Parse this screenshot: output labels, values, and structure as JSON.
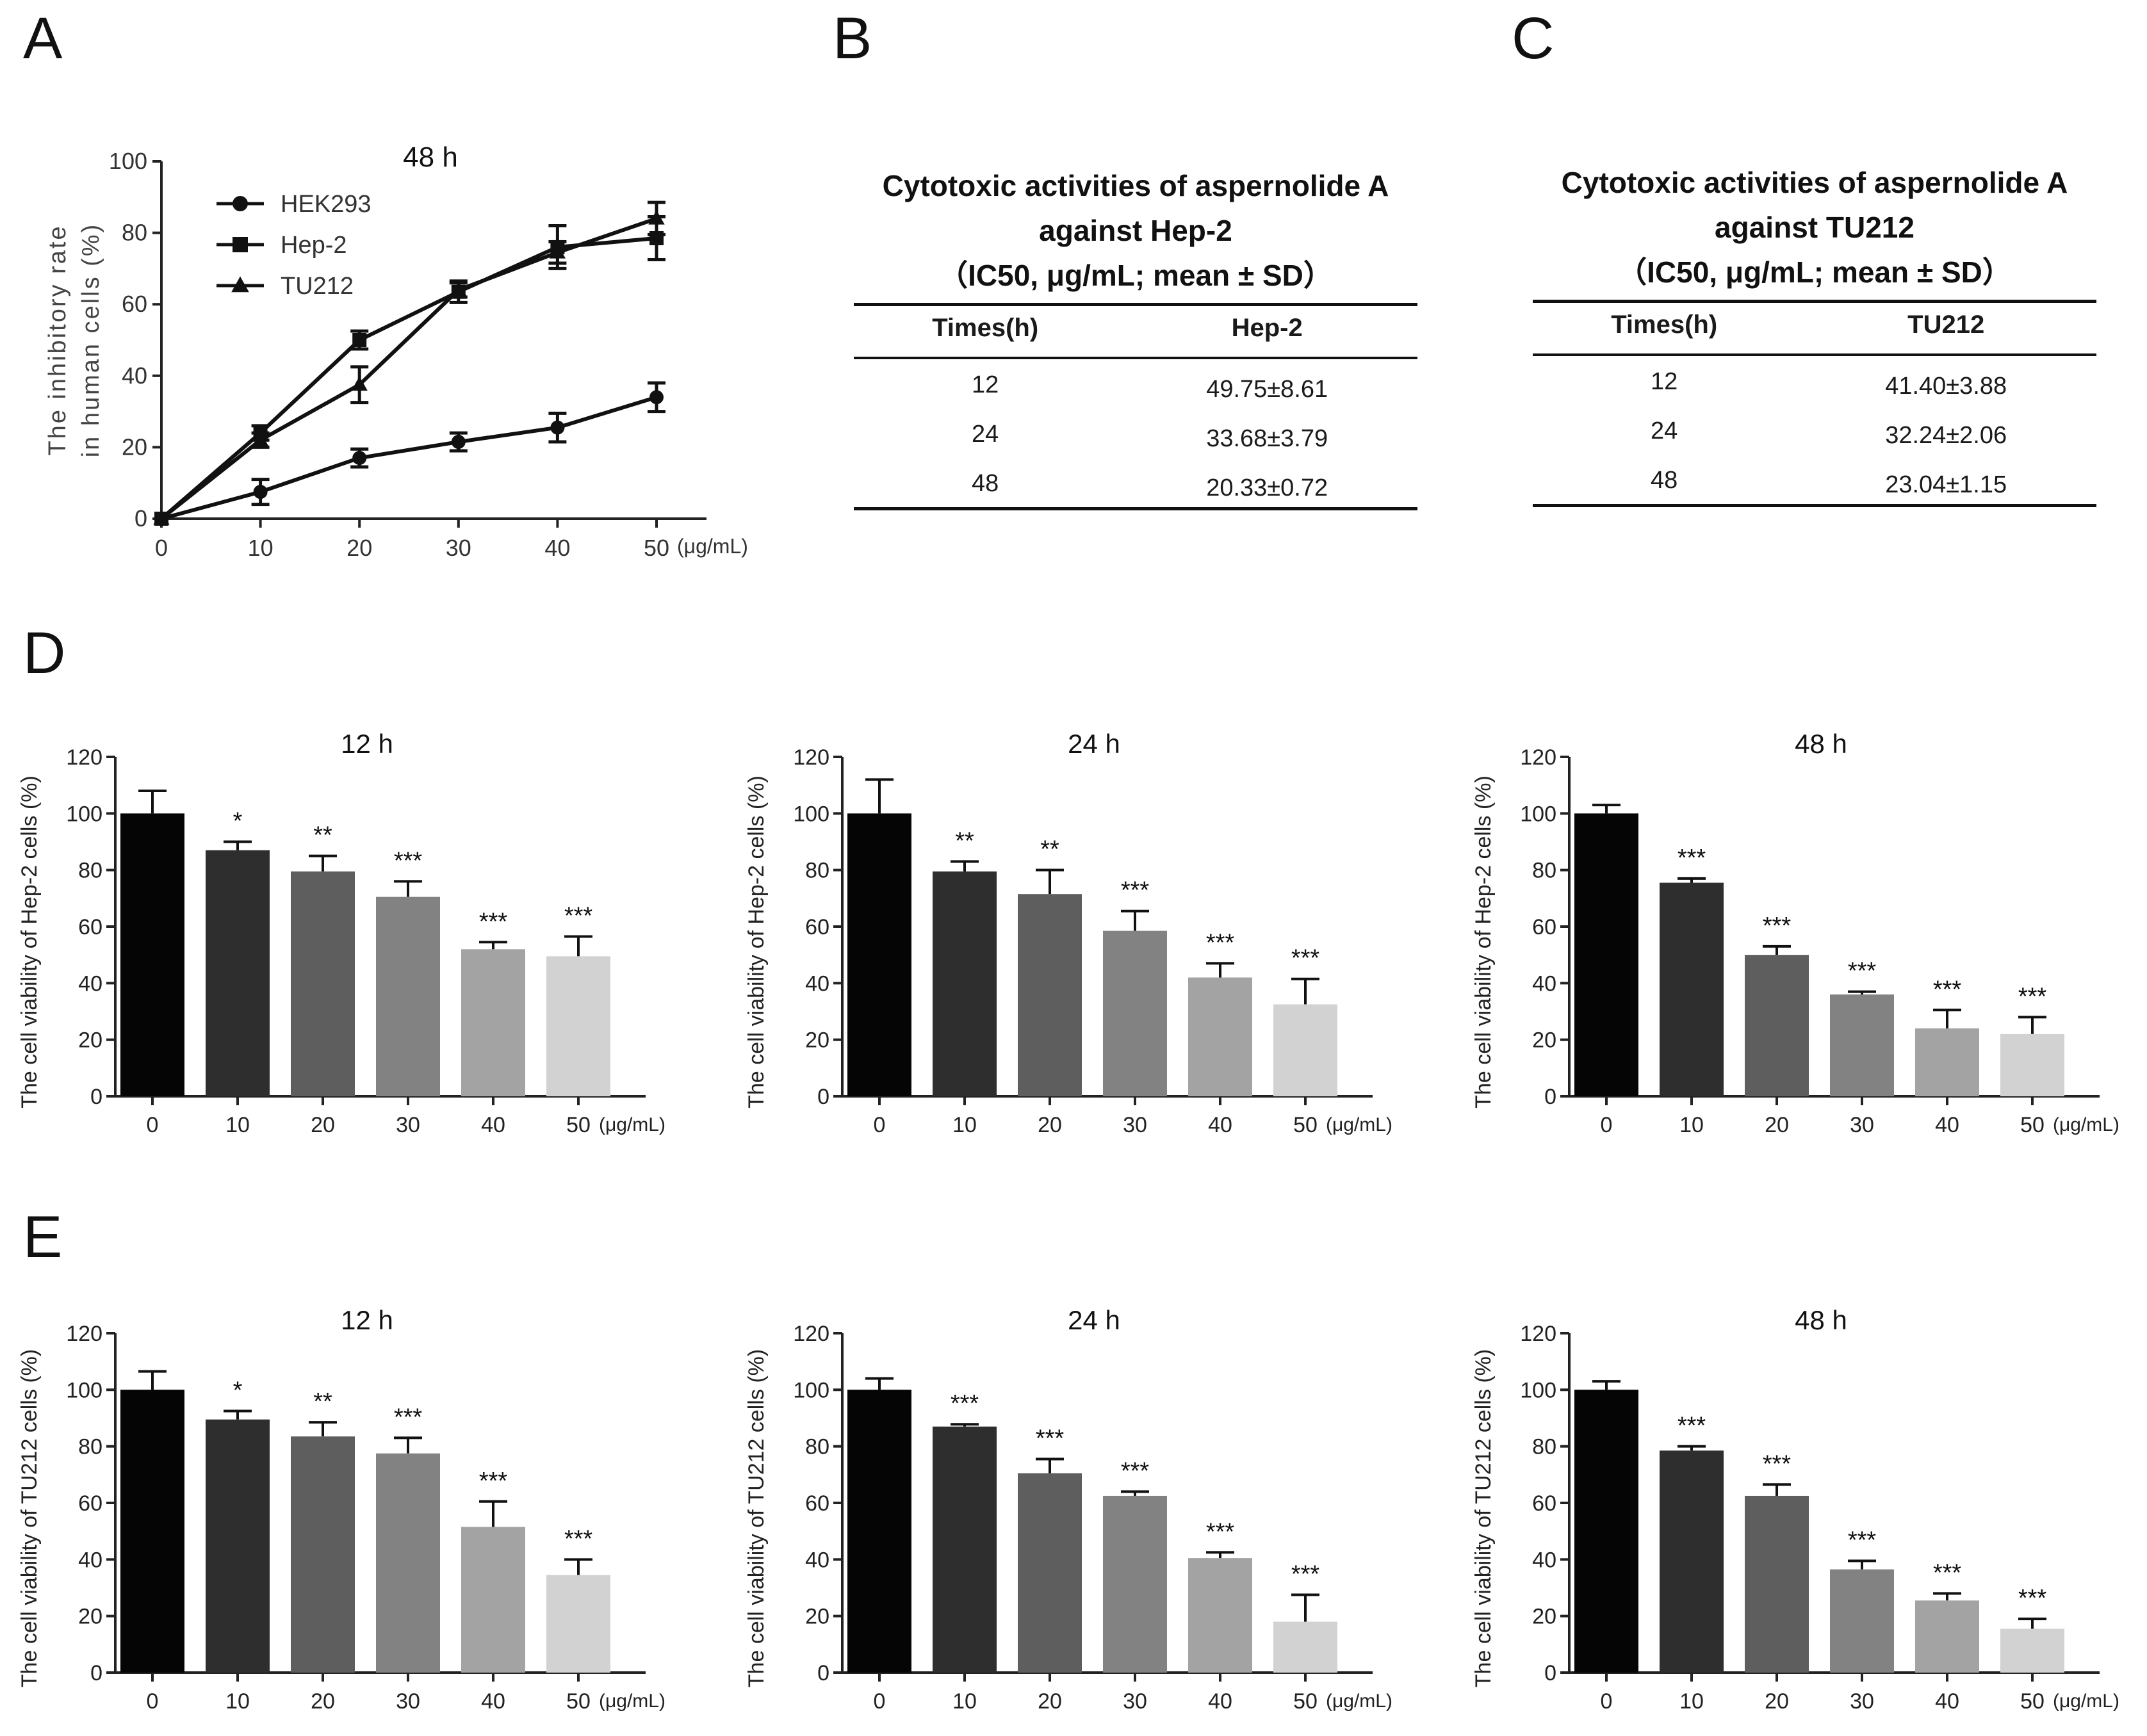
{
  "panels": {
    "a": "A",
    "b": "B",
    "c": "C",
    "d": "D",
    "e": "E"
  },
  "chart_data": [
    {
      "id": "A",
      "type": "line",
      "title": "48 h",
      "ylabel": "The inhibitory rate\nin human cells (%)",
      "x": [
        0,
        10,
        20,
        30,
        40,
        50
      ],
      "xticks": [
        "0",
        "10",
        "20",
        "30",
        "40",
        "50"
      ],
      "xunit": "(μg/mL)",
      "ylim": [
        0,
        100
      ],
      "yticks": [
        0,
        20,
        40,
        60,
        80,
        100
      ],
      "series": [
        {
          "name": "HEK293",
          "marker": "circle",
          "values": [
            0,
            7.5,
            17,
            21.5,
            25.5,
            34
          ],
          "errors": [
            0,
            3.5,
            2.5,
            2.5,
            4,
            4
          ]
        },
        {
          "name": "Hep-2",
          "marker": "square",
          "values": [
            0,
            24,
            50,
            63.5,
            76,
            78.5
          ],
          "errors": [
            0,
            2,
            2.5,
            3,
            6,
            6
          ]
        },
        {
          "name": "TU212",
          "marker": "triangle",
          "values": [
            0,
            22,
            37.5,
            64,
            74.5,
            84
          ],
          "errors": [
            0,
            2,
            5,
            2,
            3,
            4.5
          ]
        }
      ]
    },
    {
      "id": "D1",
      "type": "bar",
      "title": "12 h",
      "ylabel": "The cell viability of Hep-2 cells (%)",
      "categories": [
        "0",
        "10",
        "20",
        "30",
        "40",
        "50"
      ],
      "xunit": "(μg/mL)",
      "ylim": [
        0,
        120
      ],
      "yticks": [
        0,
        20,
        40,
        60,
        80,
        100,
        120
      ],
      "values": [
        100,
        87,
        79.5,
        70.5,
        52,
        49.5
      ],
      "errors": [
        8,
        3,
        5.5,
        5.5,
        2.5,
        7
      ],
      "significance": [
        "",
        "*",
        "**",
        "***",
        "***",
        "***"
      ]
    },
    {
      "id": "D2",
      "type": "bar",
      "title": "24 h",
      "ylabel": "The cell viability of Hep-2 cells (%)",
      "categories": [
        "0",
        "10",
        "20",
        "30",
        "40",
        "50"
      ],
      "xunit": "(μg/mL)",
      "ylim": [
        0,
        120
      ],
      "yticks": [
        0,
        20,
        40,
        60,
        80,
        100,
        120
      ],
      "values": [
        100,
        79.5,
        71.5,
        58.5,
        42,
        32.5
      ],
      "errors": [
        12,
        3.5,
        8.5,
        7,
        5,
        9
      ],
      "significance": [
        "",
        "**",
        "**",
        "***",
        "***",
        "***"
      ]
    },
    {
      "id": "D3",
      "type": "bar",
      "title": "48 h",
      "ylabel": "The cell viability of Hep-2 cells (%)",
      "categories": [
        "0",
        "10",
        "20",
        "30",
        "40",
        "50"
      ],
      "xunit": "(μg/mL)",
      "ylim": [
        0,
        120
      ],
      "yticks": [
        0,
        20,
        40,
        60,
        80,
        100,
        120
      ],
      "values": [
        100,
        75.5,
        50,
        36,
        24,
        22
      ],
      "errors": [
        3,
        1.5,
        3,
        1,
        6.5,
        6
      ],
      "significance": [
        "",
        "***",
        "***",
        "***",
        "***",
        "***"
      ]
    },
    {
      "id": "E1",
      "type": "bar",
      "title": "12 h",
      "ylabel": "The cell viability of TU212 cells (%)",
      "categories": [
        "0",
        "10",
        "20",
        "30",
        "40",
        "50"
      ],
      "xunit": "(μg/mL)",
      "ylim": [
        0,
        120
      ],
      "yticks": [
        0,
        20,
        40,
        60,
        80,
        100,
        120
      ],
      "values": [
        100,
        89.5,
        83.5,
        77.5,
        51.5,
        34.5
      ],
      "errors": [
        6.5,
        3,
        5,
        5.5,
        9,
        5.5
      ],
      "significance": [
        "",
        "*",
        "**",
        "***",
        "***",
        "***"
      ]
    },
    {
      "id": "E2",
      "type": "bar",
      "title": "24 h",
      "ylabel": "The cell viability of TU212 cells (%)",
      "categories": [
        "0",
        "10",
        "20",
        "30",
        "40",
        "50"
      ],
      "xunit": "(μg/mL)",
      "ylim": [
        0,
        120
      ],
      "yticks": [
        0,
        20,
        40,
        60,
        80,
        100,
        120
      ],
      "values": [
        100,
        87,
        70.5,
        62.5,
        40.5,
        18
      ],
      "errors": [
        4,
        0.8,
        5,
        1.5,
        2,
        9.5
      ],
      "significance": [
        "",
        "***",
        "***",
        "***",
        "***",
        "***"
      ]
    },
    {
      "id": "E3",
      "type": "bar",
      "title": "48 h",
      "ylabel": "The cell viability of TU212 cells (%)",
      "categories": [
        "0",
        "10",
        "20",
        "30",
        "40",
        "50"
      ],
      "xunit": "(μg/mL)",
      "ylim": [
        0,
        120
      ],
      "yticks": [
        0,
        20,
        40,
        60,
        80,
        100,
        120
      ],
      "values": [
        100,
        78.5,
        62.5,
        36.5,
        25.5,
        15.5
      ],
      "errors": [
        3,
        1.5,
        4,
        3,
        2.5,
        3.5
      ],
      "significance": [
        "",
        "***",
        "***",
        "***",
        "***",
        "***"
      ]
    }
  ],
  "bar_colors": [
    "#050505",
    "#2e2e2e",
    "#5e5e5e",
    "#828282",
    "#a3a3a3",
    "#d2d2d2"
  ],
  "tables": {
    "b": {
      "title1": "Cytotoxic activities of aspernolide A",
      "title2": "against Hep-2",
      "title3": "（IC50, μg/mL; mean ± SD）",
      "headers": [
        "Times(h)",
        "Hep-2"
      ],
      "rows": [
        [
          "12",
          "49.75±8.61"
        ],
        [
          "24",
          "33.68±3.79"
        ],
        [
          "48",
          "20.33±0.72"
        ]
      ]
    },
    "c": {
      "title1": "Cytotoxic activities of aspernolide A",
      "title2": "against TU212",
      "title3": "（IC50, μg/mL; mean ± SD）",
      "headers": [
        "Times(h)",
        "TU212"
      ],
      "rows": [
        [
          "12",
          "41.40±3.88"
        ],
        [
          "24",
          "32.24±2.06"
        ],
        [
          "48",
          "23.04±1.15"
        ]
      ]
    }
  }
}
